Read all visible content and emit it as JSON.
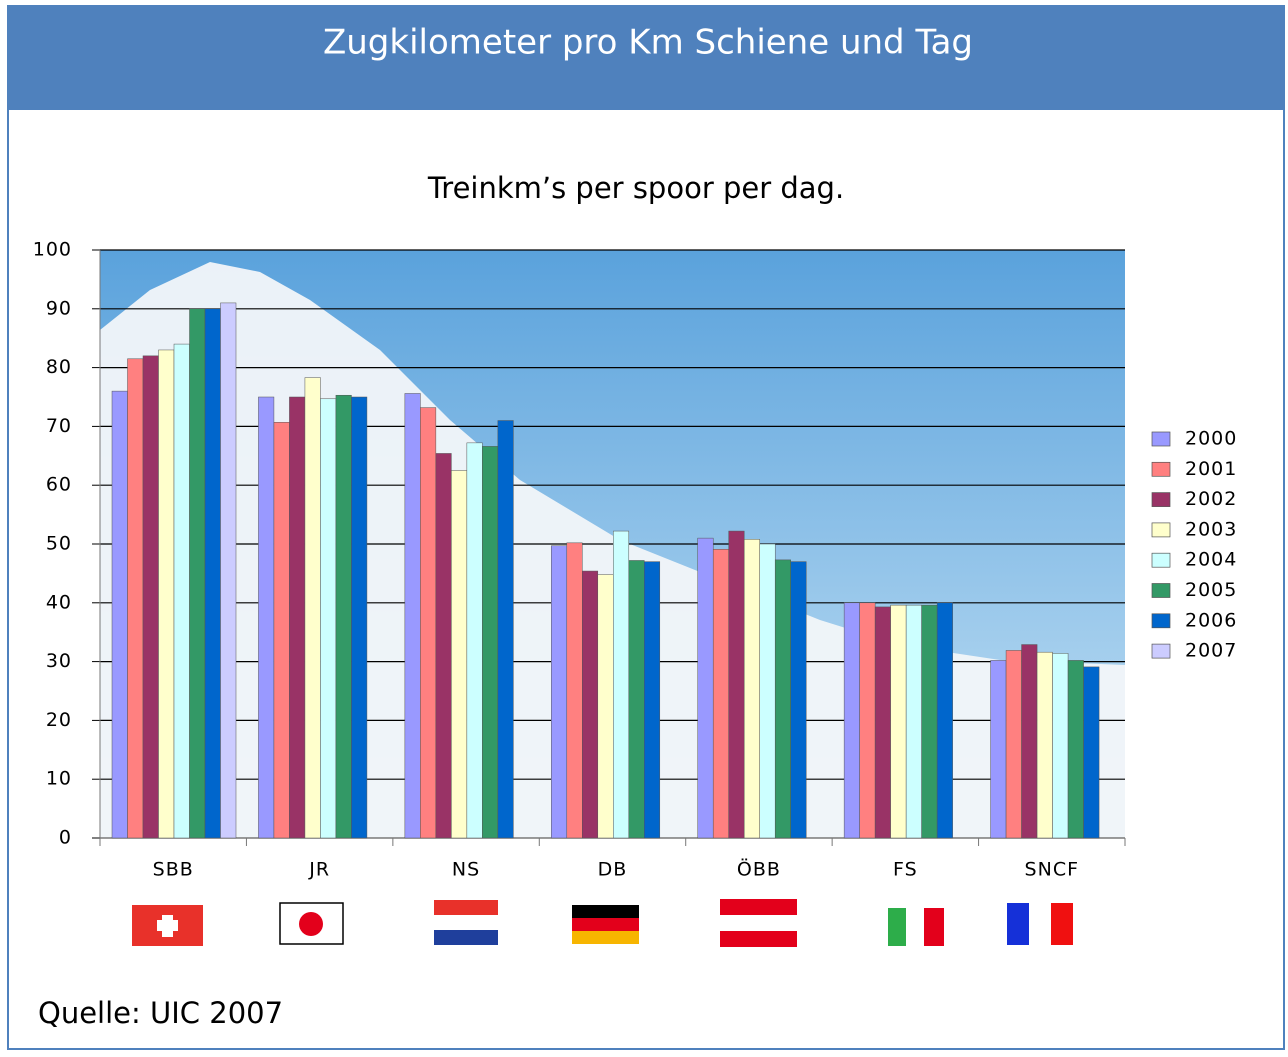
{
  "chart_data": {
    "type": "bar",
    "title": "Zugkilometer pro Km Schiene und Tag",
    "subtitle": "Treinkm’s per spoor per dag.",
    "source": "Quelle: UIC 2007",
    "categories": [
      "SBB",
      "JR",
      "NS",
      "DB",
      "ÖBB",
      "FS",
      "SNCF"
    ],
    "series": [
      {
        "name": "2000",
        "color": "#9999ff",
        "values": [
          76,
          75,
          75.6,
          49.7,
          51,
          40,
          30.2
        ]
      },
      {
        "name": "2001",
        "color": "#ff8080",
        "values": [
          81.5,
          70.7,
          73.2,
          50.2,
          49.1,
          40,
          31.9
        ]
      },
      {
        "name": "2002",
        "color": "#993366",
        "values": [
          82,
          75,
          65.4,
          45.4,
          52.2,
          39.3,
          32.9
        ]
      },
      {
        "name": "2003",
        "color": "#ffffcc",
        "values": [
          83,
          78.3,
          62.5,
          44.8,
          50.8,
          39.6,
          31.6
        ]
      },
      {
        "name": "2004",
        "color": "#ccffff",
        "values": [
          84,
          74.7,
          67.2,
          52.2,
          50,
          39.6,
          31.4
        ]
      },
      {
        "name": "2005",
        "color": "#339966",
        "values": [
          90,
          75.3,
          66.6,
          47.2,
          47.3,
          39.6,
          30.2
        ]
      },
      {
        "name": "2006",
        "color": "#0066cc",
        "values": [
          90,
          75,
          71,
          47,
          47,
          40,
          29.1
        ]
      },
      {
        "name": "2007",
        "color": "#ccccff",
        "values": [
          91,
          null,
          null,
          null,
          null,
          null,
          null
        ]
      }
    ],
    "ylim": [
      0,
      100
    ],
    "yticks": [
      0,
      10,
      20,
      30,
      40,
      50,
      60,
      70,
      80,
      90,
      100
    ],
    "grid": true
  }
}
